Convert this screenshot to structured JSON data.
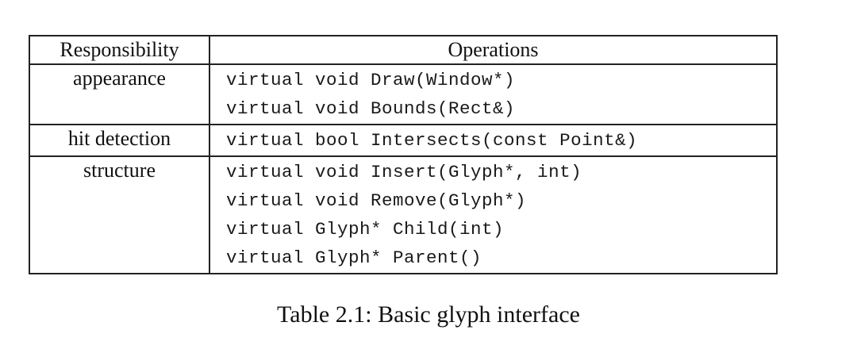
{
  "table": {
    "headers": {
      "responsibility": "Responsibility",
      "operations": "Operations"
    },
    "groups": [
      {
        "responsibility": "appearance",
        "operations": [
          "virtual void Draw(Window*)",
          "virtual void Bounds(Rect&)"
        ]
      },
      {
        "responsibility": "hit detection",
        "operations": [
          "virtual bool Intersects(const Point&)"
        ]
      },
      {
        "responsibility": "structure",
        "operations": [
          "virtual void Insert(Glyph*, int)",
          "virtual void Remove(Glyph*)",
          "virtual Glyph* Child(int)",
          "virtual Glyph* Parent()"
        ]
      }
    ]
  },
  "caption": "Table 2.1: Basic glyph interface"
}
